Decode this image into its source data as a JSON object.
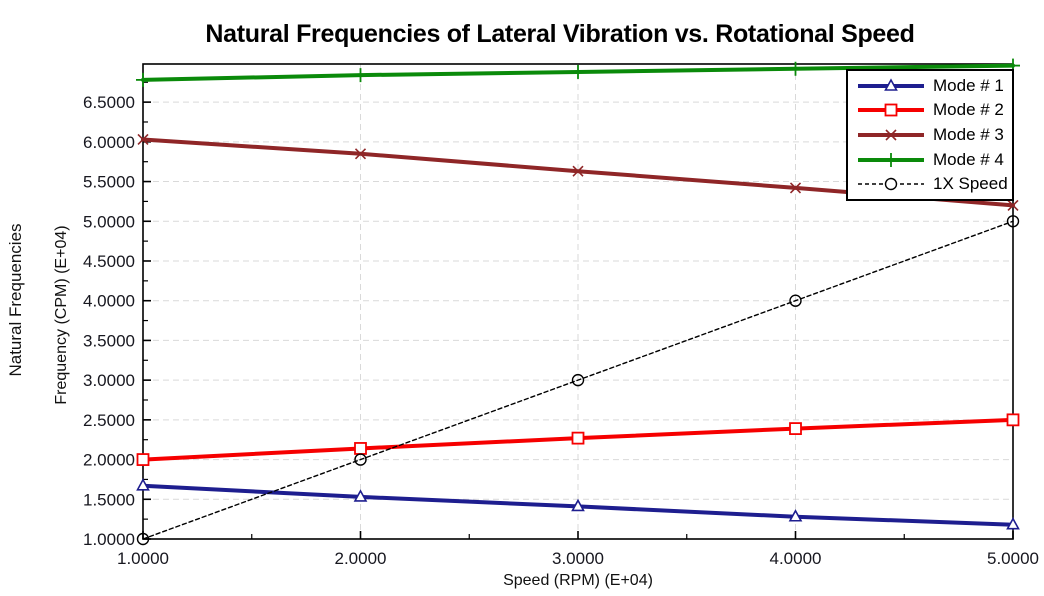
{
  "page": {
    "background": "#ffffff"
  },
  "header": {
    "title": "Natural Frequencies of Lateral Vibration vs. Rotational Speed"
  },
  "left_axis_caption": "Natural Frequencies",
  "chart_data": {
    "type": "line",
    "title": "Natural Frequencies of Lateral Vibration vs. Rotational Speed",
    "xlabel": "Speed (RPM) (E+04)",
    "ylabel": "Frequency (CPM) (E+04)",
    "x": [
      1.0,
      2.0,
      3.0,
      4.0,
      5.0
    ],
    "series": [
      {
        "name": "Mode # 1",
        "color": "#1e1e8f",
        "marker": "triangle",
        "line_style": "solid",
        "line_width": 4,
        "values": [
          1.67,
          1.53,
          1.41,
          1.28,
          1.18
        ]
      },
      {
        "name": "Mode # 2",
        "color": "#f60000",
        "marker": "square",
        "line_style": "solid",
        "line_width": 4,
        "values": [
          2.0,
          2.14,
          2.27,
          2.39,
          2.5
        ]
      },
      {
        "name": "Mode # 3",
        "color": "#8f2627",
        "marker": "x",
        "line_style": "solid",
        "line_width": 4,
        "values": [
          6.03,
          5.85,
          5.63,
          5.42,
          5.2
        ]
      },
      {
        "name": "Mode # 4",
        "color": "#0a8a0a",
        "marker": "plus",
        "line_style": "solid",
        "line_width": 4,
        "values": [
          6.78,
          6.84,
          6.88,
          6.92,
          6.96
        ]
      },
      {
        "name": "1X Speed",
        "color": "#000000",
        "marker": "circle",
        "line_style": "dashed",
        "line_width": 1.4,
        "values": [
          1.0,
          2.0,
          3.0,
          4.0,
          5.0
        ]
      }
    ],
    "xlim": [
      1.0,
      5.0
    ],
    "ylim": [
      1.0,
      6.98
    ],
    "x_ticks": {
      "values": [
        1.0,
        2.0,
        3.0,
        4.0,
        5.0
      ],
      "labels": [
        "1.0000",
        "2.0000",
        "3.0000",
        "4.0000",
        "5.0000"
      ],
      "minor": [
        1.5,
        2.5,
        3.5,
        4.5
      ]
    },
    "y_ticks": {
      "values": [
        1.0,
        1.5,
        2.0,
        2.5,
        3.0,
        3.5,
        4.0,
        4.5,
        5.0,
        5.5,
        6.0,
        6.5
      ],
      "labels": [
        "1.0000",
        "1.5000",
        "2.0000",
        "2.5000",
        "3.0000",
        "3.5000",
        "4.0000",
        "4.5000",
        "5.0000",
        "5.5000",
        "6.0000",
        "6.5000"
      ],
      "minor": [
        1.25,
        1.75,
        2.25,
        2.75,
        3.25,
        3.75,
        4.25,
        4.75,
        5.25,
        5.75,
        6.25,
        6.75
      ]
    },
    "grid": {
      "show": true,
      "color": "#d9d9d9",
      "dash": "6 4"
    },
    "legend": {
      "position": "top-right",
      "entries": [
        "Mode # 1",
        "Mode # 2",
        "Mode # 3",
        "Mode # 4",
        "1X Speed"
      ]
    },
    "colors": {
      "axis": "#000000",
      "tick_label": "#17171f",
      "title": "#000000"
    }
  }
}
